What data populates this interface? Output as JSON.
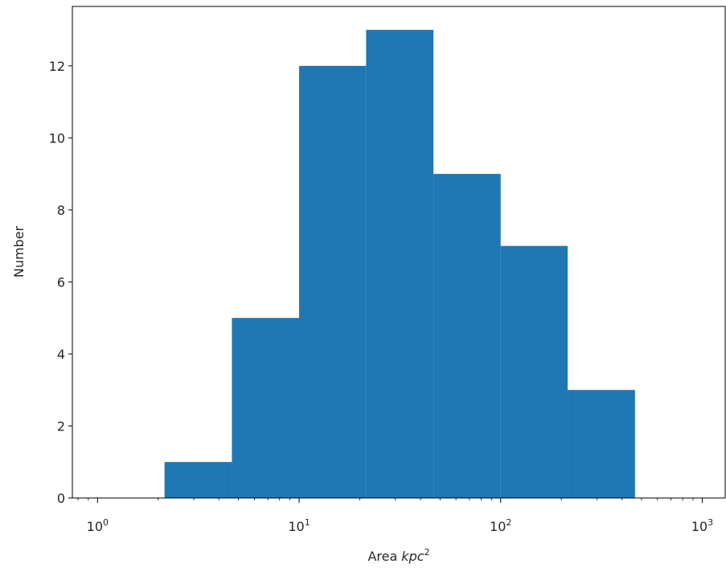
{
  "chart_data": {
    "type": "bar",
    "xscale": "log",
    "xlim": [
      0.75,
      1300
    ],
    "ylim": [
      0,
      13.65
    ],
    "xlabel": "Area",
    "xlabel_math": "kpc",
    "xlabel_exp": "2",
    "ylabel": "Number",
    "bar_color": "#1f77b4",
    "bins": [
      {
        "x0": 2.15,
        "x1": 4.64,
        "count": 1
      },
      {
        "x0": 4.64,
        "x1": 10.0,
        "count": 5
      },
      {
        "x0": 10.0,
        "x1": 21.5,
        "count": 12
      },
      {
        "x0": 21.5,
        "x1": 46.4,
        "count": 13
      },
      {
        "x0": 46.4,
        "x1": 100.0,
        "count": 9
      },
      {
        "x0": 100.0,
        "x1": 215.0,
        "count": 7
      },
      {
        "x0": 215.0,
        "x1": 464.0,
        "count": 3
      }
    ],
    "yticks": [
      0,
      2,
      4,
      6,
      8,
      10,
      12
    ],
    "xticks": [
      {
        "value": 1,
        "base": "10",
        "exp": "0"
      },
      {
        "value": 10,
        "base": "10",
        "exp": "1"
      },
      {
        "value": 100,
        "base": "10",
        "exp": "2"
      },
      {
        "value": 1000,
        "base": "10",
        "exp": "3"
      }
    ]
  }
}
